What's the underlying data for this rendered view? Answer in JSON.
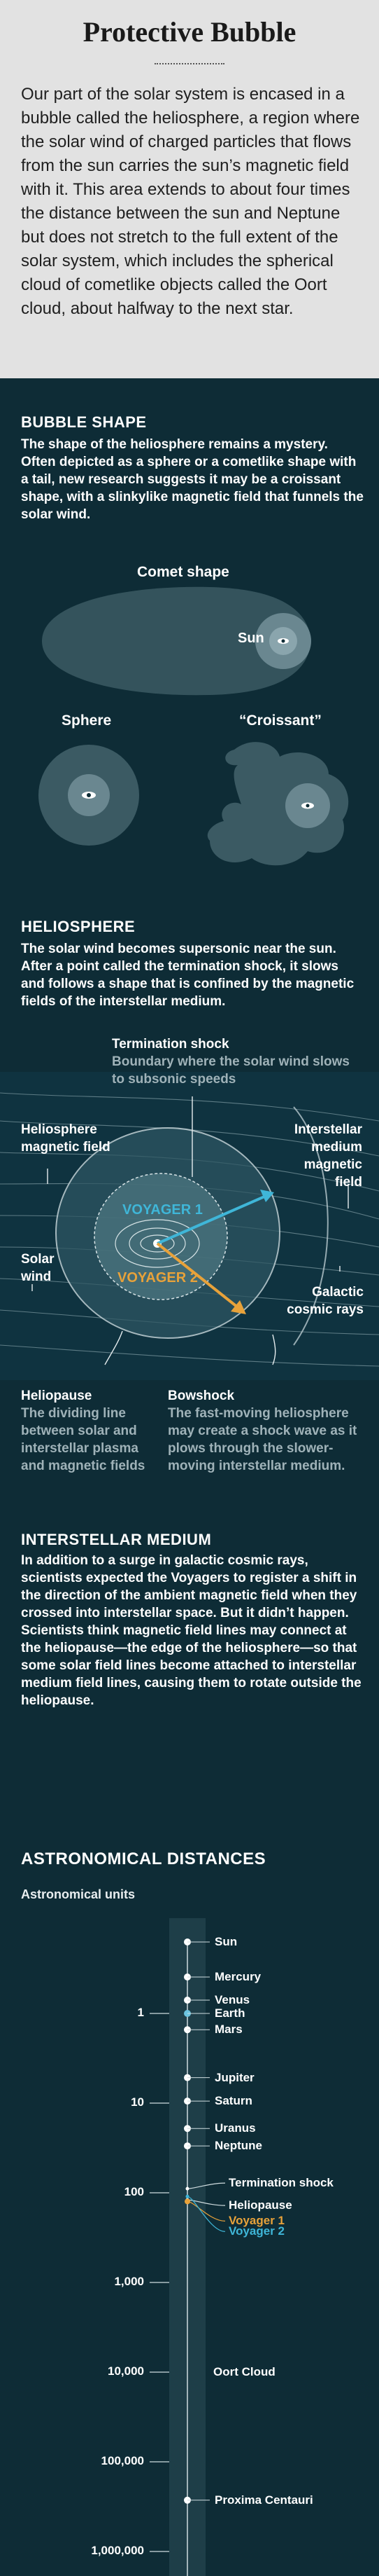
{
  "title": "Protective Bubble",
  "intro": "Our part of the solar system is encased in a bubble called the heliosphere, a region where the solar wind of charged particles that flows from the sun carries the sun’s magnetic field with it. This area extends to about four times the distance between the sun and Neptune but does not stretch to the full extent of the solar system, which includes the spherical cloud of cometlike objects called the Oort cloud, about halfway to the next star.",
  "bubble": {
    "heading": "BUBBLE SHAPE",
    "text": "The shape of the heliosphere remains a mystery. Often depicted as a sphere or a cometlike shape with a tail, new research suggests it may be a croissant shape, with a slinkylike magnetic field that funnels the solar wind.",
    "comet_label": "Comet shape",
    "sun_label": "Sun",
    "sphere_label": "Sphere",
    "croissant_label": "“Croissant”"
  },
  "helio": {
    "heading": "HELIOSPHERE",
    "text": "The solar wind becomes supersonic near the sun. After a point called the termination shock, it slows and follows a shape that is confined by the magnetic fields of the interstellar medium.",
    "termination_title": "Termination shock",
    "termination_text": "Boundary where the solar wind slows to subsonic speeds",
    "helio_field": "Heliosphere magnetic field",
    "interstellar_field": "Interstellar medium magnetic field",
    "solar_wind": "Solar wind",
    "galactic": "Galactic cosmic rays",
    "voyager1": "VOYAGER 1",
    "voyager2": "VOYAGER 2",
    "heliopause_title": "Heliopause",
    "heliopause_text": "The dividing line between solar and interstellar plasma and magnetic fields",
    "bowshock_title": "Bowshock",
    "bowshock_text": "The fast-moving heliosphere may create a shock wave as it plows through the slower-moving interstellar medium."
  },
  "ism": {
    "heading": "INTERSTELLAR MEDIUM",
    "text": "In addition to a surge in galactic cosmic rays, scientists expected the Voyagers to register a shift in the direction of the ambient magnetic field when they crossed into interstellar space. But it didn’t happen. Scientists think magnetic field lines may connect at the heliopause—the edge of the heliosphere—so that some solar field lines become attached to interstellar medium field lines, causing them to rotate outside the heliopause."
  },
  "astro": {
    "heading": "ASTRONOMICAL DISTANCES",
    "axis_title": "Astronomical units",
    "ticks": [
      "1",
      "10",
      "100",
      "1,000",
      "10,000",
      "100,000",
      "1,000,000"
    ],
    "bodies": [
      {
        "name": "Sun",
        "au": 0.0
      },
      {
        "name": "Mercury",
        "au": 0.39
      },
      {
        "name": "Venus",
        "au": 0.72
      },
      {
        "name": "Earth",
        "au": 1
      },
      {
        "name": "Mars",
        "au": 1.52
      },
      {
        "name": "Jupiter",
        "au": 5.2
      },
      {
        "name": "Saturn",
        "au": 9.5
      },
      {
        "name": "Uranus",
        "au": 19.2
      },
      {
        "name": "Neptune",
        "au": 30
      },
      {
        "name": "Termination shock",
        "au": 90
      },
      {
        "name": "Heliopause",
        "au": 120
      },
      {
        "name": "Voyager 1",
        "au": 125
      },
      {
        "name": "Voyager 2",
        "au": 110
      },
      {
        "name": "Oort Cloud",
        "au": 10000
      },
      {
        "name": "Proxima Centauri",
        "au": 268000
      }
    ]
  },
  "colors": {
    "top_bg": "#e2e2e2",
    "dark_bg": "#0e2c36",
    "voyager1": "#3fb6d8",
    "voyager2": "#e8a23a"
  }
}
